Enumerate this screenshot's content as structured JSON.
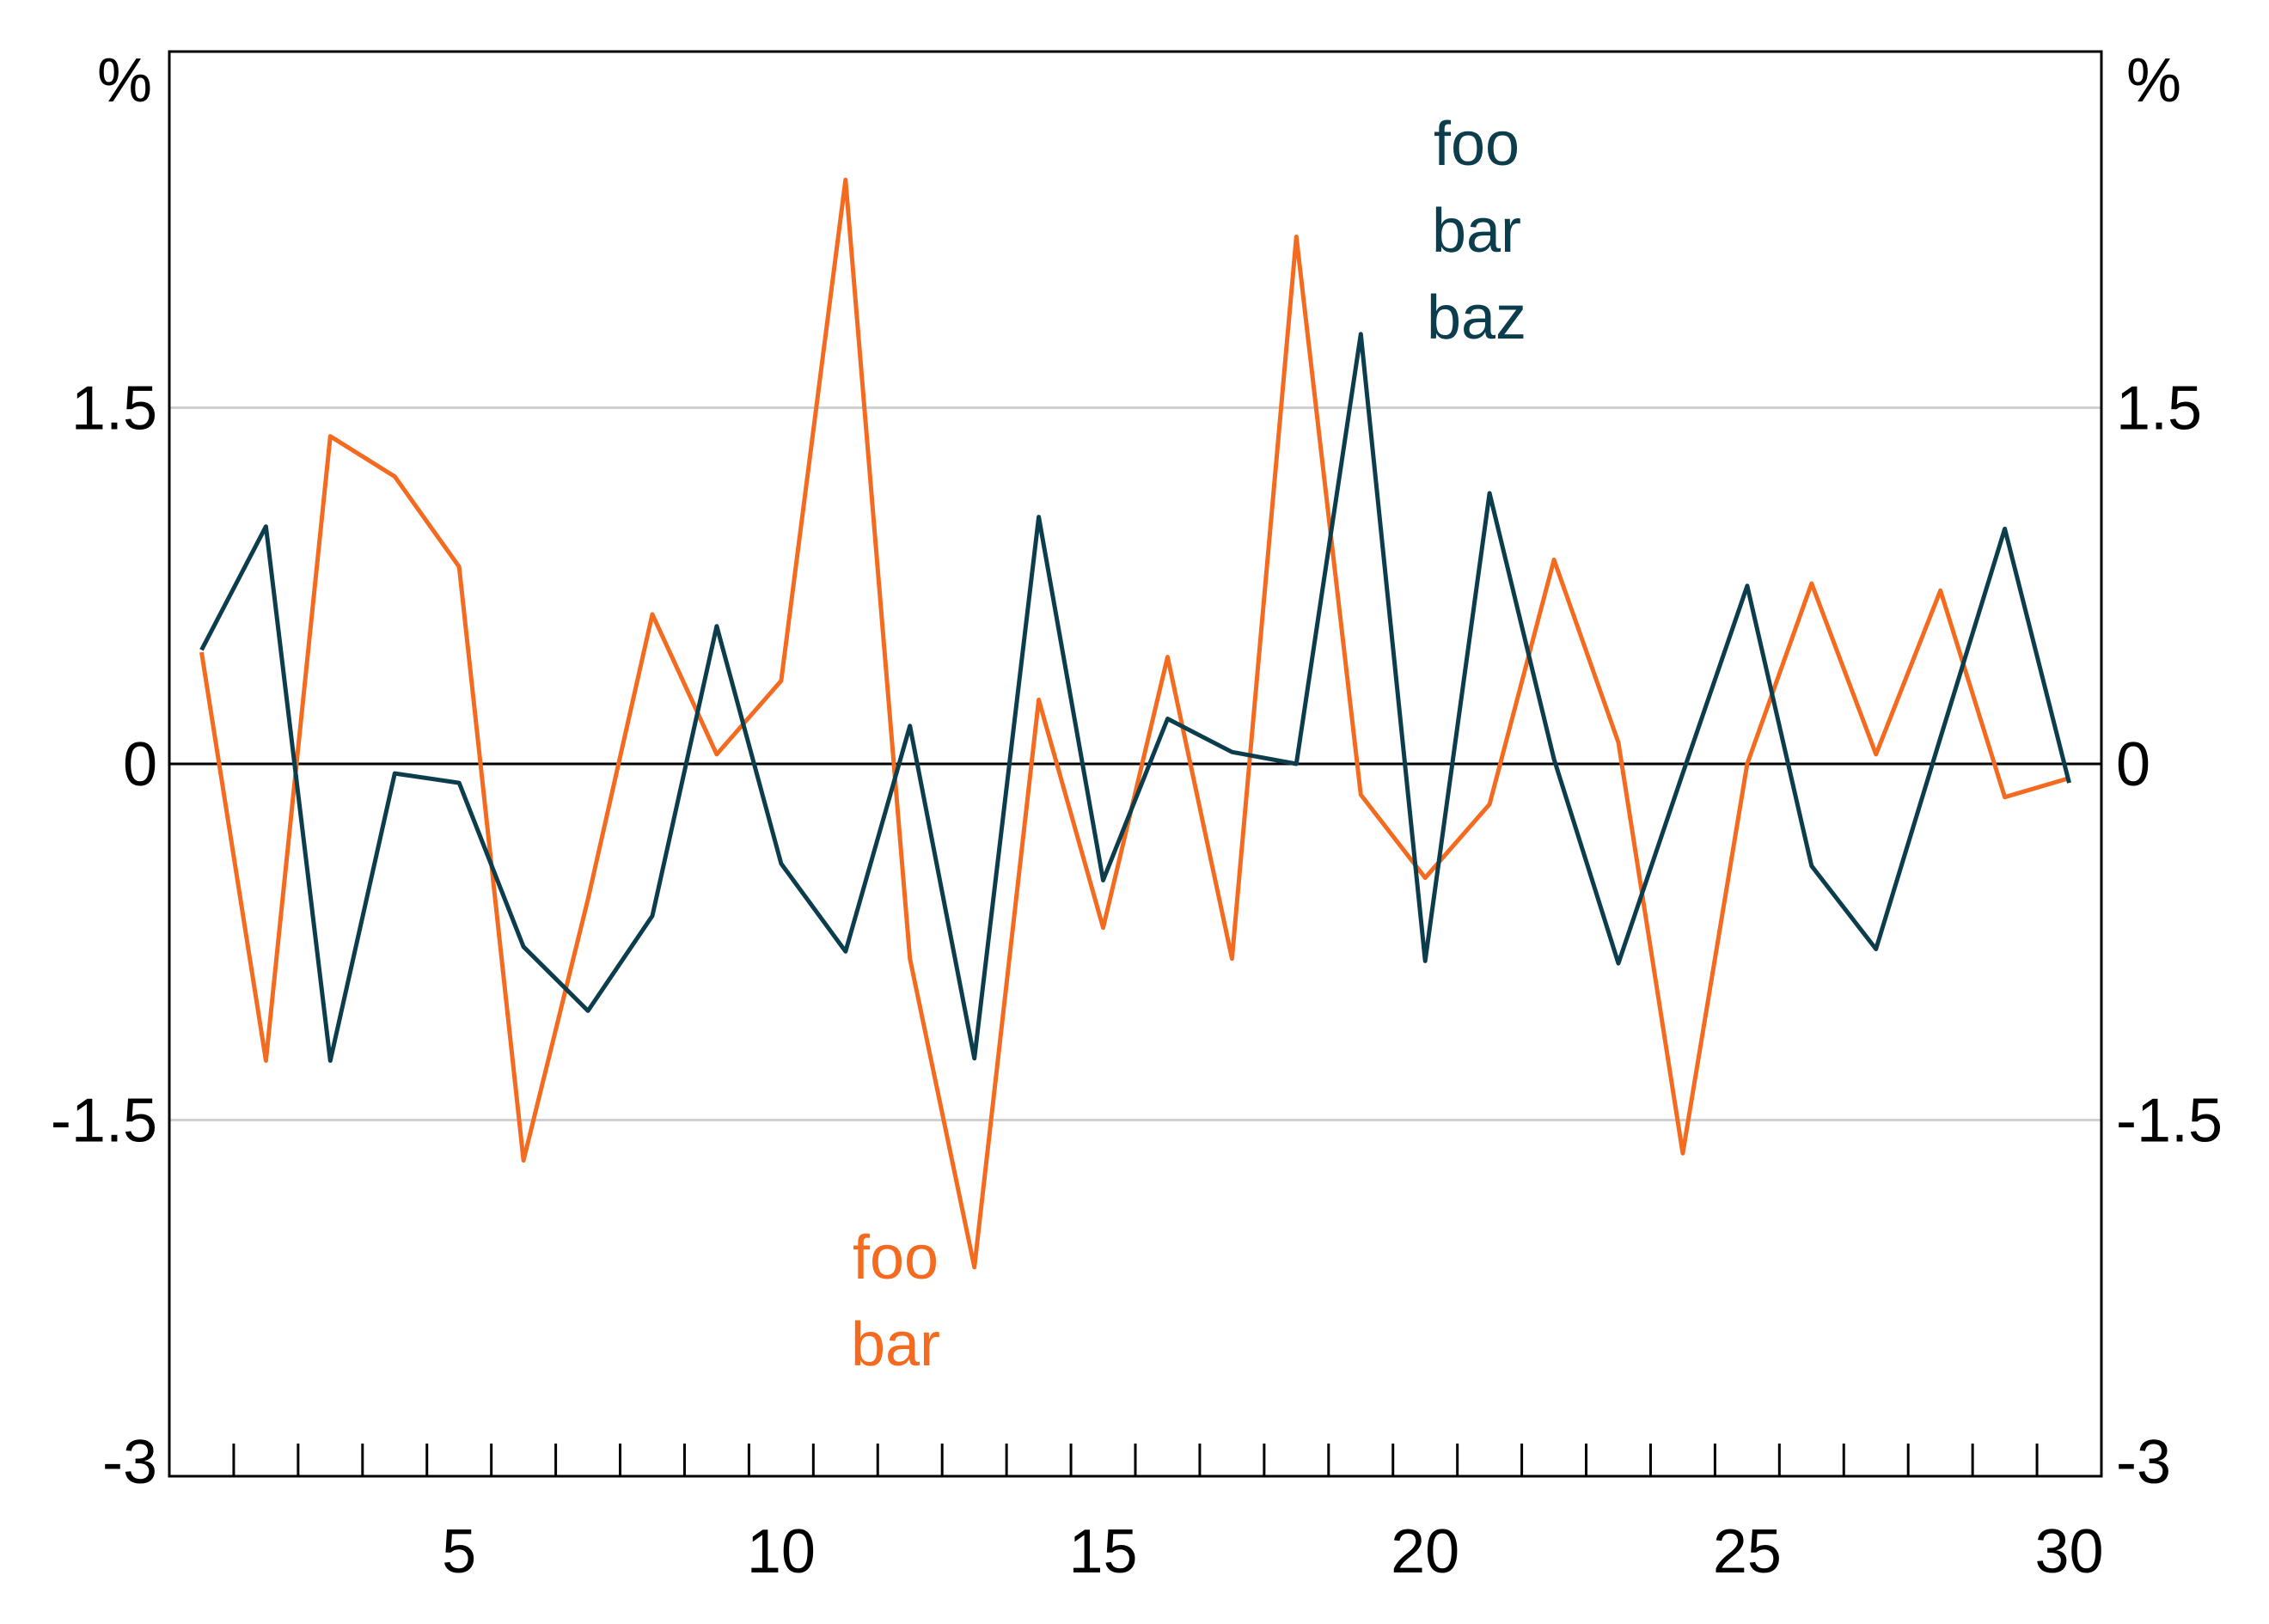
{
  "chart_data": {
    "type": "line",
    "x": [
      1,
      2,
      3,
      4,
      5,
      6,
      7,
      8,
      9,
      10,
      11,
      12,
      13,
      14,
      15,
      16,
      17,
      18,
      19,
      20,
      21,
      22,
      23,
      24,
      25,
      26,
      27,
      28,
      29,
      30
    ],
    "xlim": [
      0.5,
      30.5
    ],
    "ylim": [
      -3,
      3
    ],
    "x_ticks": [
      5,
      10,
      15,
      20,
      25,
      30
    ],
    "y_ticks": [
      -3,
      -1.5,
      0,
      1.5
    ],
    "y_unit_left": "%",
    "y_unit_right": "%",
    "grid": "horizontal",
    "series": [
      {
        "name": "foo bar baz",
        "label_lines": [
          "foo",
          "bar",
          "baz"
        ],
        "color": "#0b3d4c",
        "values": [
          0.48,
          1.0,
          -1.25,
          -0.04,
          -0.08,
          -0.77,
          -1.04,
          -0.64,
          0.58,
          -0.42,
          -0.79,
          0.16,
          -1.24,
          1.04,
          -0.49,
          0.19,
          0.05,
          0.0,
          1.81,
          -0.83,
          1.14,
          0.02,
          -0.84,
          -0.04,
          0.75,
          -0.43,
          -0.78,
          0.11,
          0.99,
          -0.08
        ]
      },
      {
        "name": "foo bar",
        "label_lines": [
          "foo",
          "bar"
        ],
        "color": "#f46a1f",
        "values": [
          0.47,
          -1.25,
          1.38,
          1.21,
          0.83,
          -1.67,
          -0.57,
          0.63,
          0.04,
          0.35,
          2.46,
          -0.82,
          -2.12,
          0.27,
          -0.69,
          0.45,
          -0.82,
          2.22,
          -0.13,
          -0.48,
          -0.17,
          0.86,
          0.09,
          -1.64,
          0.0,
          0.76,
          0.04,
          0.73,
          -0.14,
          -0.06
        ]
      }
    ]
  }
}
